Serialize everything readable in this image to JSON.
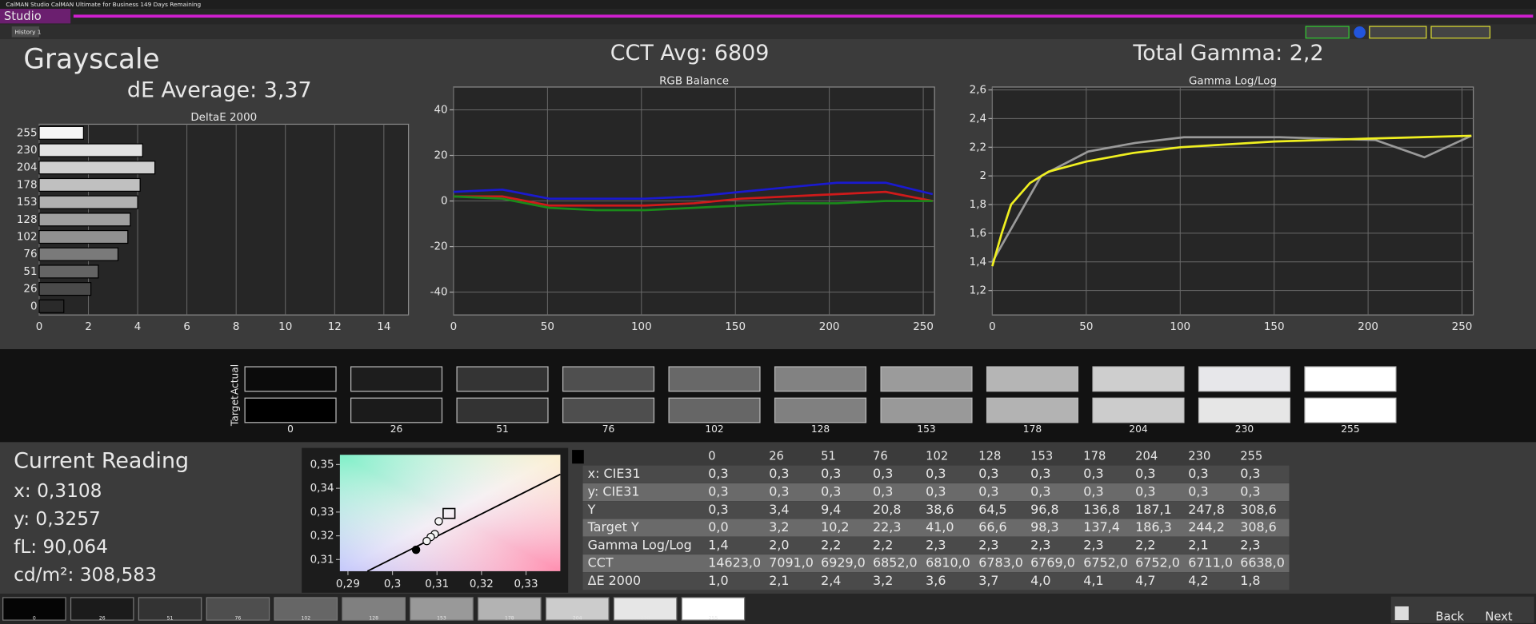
{
  "window_title": "CalMAN Studio CalMAN Ultimate for Business 149 Days Remaining",
  "menu": "Studio",
  "tab": "History 1",
  "grayscale": {
    "title": "Grayscale",
    "de_average": "dE Average: 3,37",
    "chart": {
      "type": "bar",
      "title": "DeltaE 2000",
      "categories": [
        "255",
        "230",
        "204",
        "178",
        "153",
        "128",
        "102",
        "76",
        "51",
        "26",
        "0"
      ],
      "values": [
        1.8,
        4.2,
        4.7,
        4.1,
        4.0,
        3.7,
        3.6,
        3.2,
        2.4,
        2.1,
        1.0
      ],
      "colors": [
        "#f4f4f4",
        "#e2e2e2",
        "#cfcfcf",
        "#c0c0c0",
        "#b0b0b0",
        "#a0a0a0",
        "#909090",
        "#7a7a7a",
        "#646464",
        "#4a4a4a",
        "#2a2a2a"
      ],
      "xlim": [
        0,
        15
      ],
      "xticks": [
        0,
        2,
        4,
        6,
        8,
        10,
        12,
        14
      ],
      "grid": true
    }
  },
  "rgb_balance": {
    "heading": "CCT Avg: 6809",
    "chart": {
      "type": "line",
      "title": "RGB Balance",
      "x": [
        0,
        26,
        51,
        76,
        102,
        128,
        153,
        178,
        204,
        230,
        255
      ],
      "series": [
        {
          "color": "#1a1ad0",
          "values": [
            4,
            5,
            1,
            1,
            1,
            2,
            4,
            6,
            8,
            8,
            3
          ]
        },
        {
          "color": "#d01a1a",
          "values": [
            2,
            2,
            -2,
            -2,
            -2,
            -1,
            1,
            2,
            3,
            4,
            0
          ]
        },
        {
          "color": "#1a8a1a",
          "values": [
            2,
            1,
            -3,
            -4,
            -4,
            -3,
            -2,
            -1,
            -1,
            0,
            0
          ]
        }
      ],
      "xlim": [
        0,
        256
      ],
      "xticks": [
        0,
        50,
        100,
        150,
        200,
        250
      ],
      "ylim": [
        -50,
        50
      ],
      "yticks": [
        -40,
        -20,
        0,
        20,
        40
      ],
      "grid": true
    }
  },
  "gamma": {
    "heading": "Total Gamma: 2,2",
    "chart": {
      "type": "line",
      "title": "Gamma Log/Log",
      "series": [
        {
          "color": "#9a9a9a",
          "x": [
            0,
            26,
            51,
            76,
            102,
            128,
            153,
            178,
            204,
            230,
            255
          ],
          "values": [
            1.4,
            2.0,
            2.17,
            2.23,
            2.27,
            2.27,
            2.27,
            2.26,
            2.25,
            2.13,
            2.28
          ]
        },
        {
          "color": "#f0f020",
          "x": [
            0,
            5,
            10,
            20,
            30,
            50,
            75,
            100,
            150,
            200,
            255
          ],
          "values": [
            1.37,
            1.6,
            1.8,
            1.95,
            2.03,
            2.1,
            2.16,
            2.2,
            2.24,
            2.26,
            2.28
          ]
        }
      ],
      "xlim": [
        0,
        256
      ],
      "xticks": [
        0,
        50,
        100,
        150,
        200,
        250
      ],
      "ylim": [
        1.03,
        2.62
      ],
      "yticks": [
        {
          "value": 1.2,
          "label": "1,2"
        },
        {
          "value": 1.4,
          "label": "1,4"
        },
        {
          "value": 1.6,
          "label": "1,6"
        },
        {
          "value": 1.8,
          "label": "1,8"
        },
        2,
        {
          "value": 2.2,
          "label": "2,2"
        },
        {
          "value": 2.4,
          "label": "2,4"
        },
        {
          "value": 2.6,
          "label": "2,6"
        }
      ],
      "grid": true
    }
  },
  "swatches": {
    "actual_label": "Actual",
    "target_label": "Target",
    "labels": [
      "0",
      "26",
      "51",
      "76",
      "102",
      "128",
      "153",
      "178",
      "204",
      "230",
      "255"
    ],
    "actual_colors": [
      "#0b0b0b",
      "#1d1d1d",
      "#343434",
      "#4f4f4f",
      "#686868",
      "#828282",
      "#9b9b9b",
      "#b5b5b5",
      "#cecece",
      "#e7e7ea",
      "#ffffff"
    ],
    "target_colors": [
      "#000000",
      "#1b1b1b",
      "#333333",
      "#4e4e4e",
      "#666666",
      "#808080",
      "#999999",
      "#b3b3b3",
      "#cccccc",
      "#e6e6e6",
      "#ffffff"
    ]
  },
  "current_reading": {
    "title": "Current Reading",
    "lines": [
      "x: 0,3108",
      "y: 0,3257",
      "fL: 90,064",
      "cd/m²: 308,583"
    ]
  },
  "cie": {
    "type": "scatter",
    "xlim": [
      0.2882,
      0.3377
    ],
    "ylim": [
      0.3051,
      0.3541
    ],
    "xticks": [
      {
        "value": 0.29,
        "label": "0,29"
      },
      {
        "value": 0.3,
        "label": "0,3"
      },
      {
        "value": 0.31,
        "label": "0,31"
      },
      {
        "value": 0.32,
        "label": "0,32"
      },
      {
        "value": 0.33,
        "label": "0,33"
      }
    ],
    "yticks": [
      {
        "value": 0.31,
        "label": "0,31"
      },
      {
        "value": 0.32,
        "label": "0,32"
      },
      {
        "value": 0.33,
        "label": "0,33"
      },
      {
        "value": 0.34,
        "label": "0,34"
      },
      {
        "value": 0.35,
        "label": "0,35"
      }
    ],
    "points": {
      "x": [
        0.3104,
        0.3095,
        0.3086,
        0.3077,
        0.3053
      ],
      "y": [
        0.3261,
        0.3207,
        0.3195,
        0.3178,
        0.3141
      ]
    },
    "target": {
      "x": 0.3127,
      "y": 0.329
    }
  },
  "table": {
    "header": [
      "0",
      "26",
      "51",
      "76",
      "102",
      "128",
      "153",
      "178",
      "204",
      "230",
      "255"
    ],
    "rows": [
      [
        "x: CIE31",
        "0,3",
        "0,3",
        "0,3",
        "0,3",
        "0,3",
        "0,3",
        "0,3",
        "0,3",
        "0,3",
        "0,3",
        "0,3"
      ],
      [
        "y: CIE31",
        "0,3",
        "0,3",
        "0,3",
        "0,3",
        "0,3",
        "0,3",
        "0,3",
        "0,3",
        "0,3",
        "0,3",
        "0,3"
      ],
      [
        "Y",
        "0,3",
        "3,4",
        "9,4",
        "20,8",
        "38,6",
        "64,5",
        "96,8",
        "136,8",
        "187,1",
        "247,8",
        "308,6"
      ],
      [
        "Target Y",
        "0,0",
        "3,2",
        "10,2",
        "22,3",
        "41,0",
        "66,6",
        "98,3",
        "137,4",
        "186,3",
        "244,2",
        "308,6"
      ],
      [
        "Gamma Log/Log",
        "1,4",
        "2,0",
        "2,2",
        "2,2",
        "2,3",
        "2,3",
        "2,3",
        "2,3",
        "2,2",
        "2,1",
        "2,3"
      ],
      [
        "CCT",
        "14623,0",
        "7091,0",
        "6929,0",
        "6852,0",
        "6810,0",
        "6783,0",
        "6769,0",
        "6752,0",
        "6752,0",
        "6711,0",
        "6638,0"
      ],
      [
        "ΔE 2000",
        "1,0",
        "2,1",
        "2,4",
        "3,2",
        "3,6",
        "3,7",
        "4,0",
        "4,1",
        "4,7",
        "4,2",
        "1,8"
      ]
    ]
  },
  "bottom_strip": {
    "labels": [
      "0",
      "26",
      "51",
      "76",
      "102",
      "128",
      "153",
      "178",
      "204",
      "230",
      "255"
    ],
    "colors": [
      "#050505",
      "#1b1b1b",
      "#333333",
      "#4e4e4e",
      "#666666",
      "#808080",
      "#999999",
      "#b3b3b3",
      "#cccccc",
      "#e6e6e6",
      "#ffffff"
    ]
  },
  "nav": {
    "back": "Back",
    "next": "Next"
  }
}
